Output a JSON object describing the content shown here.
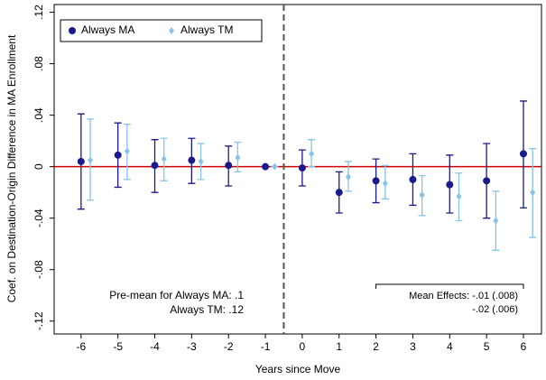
{
  "chart_data": {
    "type": "errorbar",
    "ylabel": "Coef. on Destination-Origin Difference in MA Enrollment",
    "xlabel": "Years since Move",
    "xlim": [
      -6.73,
      6.49
    ],
    "ylim": [
      -0.13,
      0.126
    ],
    "xticks": [
      -6,
      -5,
      -4,
      -3,
      -2,
      -1,
      0,
      1,
      2,
      3,
      4,
      5,
      6
    ],
    "yticks": [
      {
        "value": -0.12,
        "label": "-.12"
      },
      {
        "value": -0.08,
        "label": "-.08"
      },
      {
        "value": -0.04,
        "label": "-.04"
      },
      0,
      {
        "value": 0.04,
        "label": ".04"
      },
      {
        "value": 0.08,
        "label": ".08"
      },
      {
        "value": 0.12,
        "label": ".12"
      }
    ],
    "reference_line": {
      "value": 0,
      "color": "#cc0000"
    },
    "event_line": -0.5,
    "legend_position": "upper-left",
    "series": [
      {
        "name": "Always MA",
        "color": "#1a1a8c",
        "marker": "circle",
        "x": [
          -6,
          -5,
          -4,
          -3,
          -2,
          -1,
          0,
          1,
          2,
          3,
          4,
          5,
          6
        ],
        "values": [
          0.004,
          0.009,
          0.001,
          0.005,
          0.001,
          0,
          -0.001,
          -0.02,
          -0.011,
          -0.01,
          -0.014,
          -0.011,
          0.01
        ],
        "lower": [
          -0.033,
          -0.016,
          -0.02,
          -0.013,
          -0.015,
          0,
          -0.015,
          -0.036,
          -0.028,
          -0.03,
          -0.036,
          -0.04,
          -0.032
        ],
        "upper": [
          0.041,
          0.034,
          0.021,
          0.022,
          0.016,
          0,
          0.013,
          -0.004,
          0.006,
          0.01,
          0.009,
          0.018,
          0.051
        ]
      },
      {
        "name": "Always TM",
        "color": "#87c4e8",
        "marker": "diamond",
        "x": [
          -5.75,
          -4.75,
          -3.75,
          -2.75,
          -1.75,
          -0.75,
          0.25,
          1.25,
          2.25,
          3.25,
          4.25,
          5.25,
          6.25
        ],
        "values": [
          0.005,
          0.012,
          0.006,
          0.004,
          0.007,
          0,
          0.01,
          -0.008,
          -0.013,
          -0.022,
          -0.023,
          -0.042,
          -0.02
        ],
        "lower": [
          -0.026,
          -0.01,
          -0.011,
          -0.01,
          -0.004,
          0,
          0.0,
          -0.019,
          -0.025,
          -0.038,
          -0.042,
          -0.065,
          -0.055
        ],
        "upper": [
          0.037,
          0.033,
          0.022,
          0.018,
          0.019,
          0,
          0.021,
          0.004,
          0.001,
          -0.007,
          -0.005,
          -0.019,
          0.014
        ]
      }
    ],
    "annotations": {
      "pre_mean": [
        "Pre-mean for Always MA: .1",
        "Always TM: .12"
      ],
      "mean_effects": [
        "Mean Effects: -.01 (.008)",
        "-.02 (.006)"
      ],
      "bracket": [
        2,
        6
      ]
    }
  }
}
